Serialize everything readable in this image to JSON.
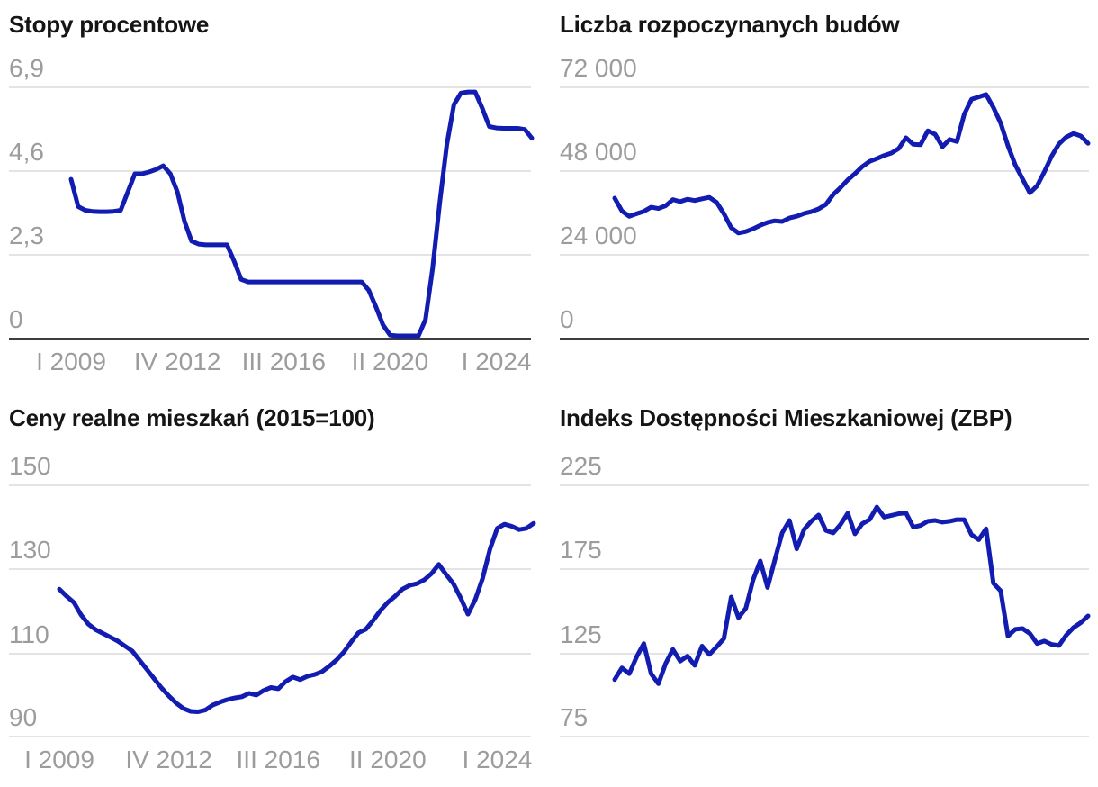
{
  "styles": {
    "background": "#ffffff",
    "line_color": "#121cb0",
    "grid_color": "#e4e4e4",
    "axis_color": "#3d3d3d",
    "tick_label_color": "#9c9c9c",
    "title_color": "#151515"
  },
  "chart_data": [
    {
      "id": "stopy-procentowe",
      "type": "line",
      "title": "Stopy procentowe",
      "ylim": [
        0,
        6.9
      ],
      "y_tick_labels": [
        "6,9",
        "4,6",
        "2,3",
        "0"
      ],
      "y_tick_values": [
        6.9,
        4.6,
        2.3,
        0
      ],
      "x_tick_labels": [
        "I 2009",
        "IV 2012",
        "III 2016",
        "II 2020",
        "I 2024"
      ],
      "grid": true,
      "legend": "none",
      "line_color": "#121cb0",
      "values": [
        4.35,
        3.6,
        3.5,
        3.47,
        3.46,
        3.46,
        3.47,
        3.5,
        4.0,
        4.5,
        4.5,
        4.55,
        4.62,
        4.72,
        4.5,
        4.0,
        3.2,
        2.65,
        2.57,
        2.55,
        2.55,
        2.55,
        2.55,
        2.1,
        1.6,
        1.53,
        1.53,
        1.53,
        1.53,
        1.53,
        1.53,
        1.53,
        1.53,
        1.53,
        1.53,
        1.53,
        1.53,
        1.53,
        1.53,
        1.53,
        1.53,
        1.53,
        1.3,
        0.85,
        0.35,
        0.07,
        0.05,
        0.05,
        0.05,
        0.05,
        0.5,
        1.9,
        3.7,
        5.3,
        6.4,
        6.72,
        6.75,
        6.75,
        6.3,
        5.8,
        5.76,
        5.75,
        5.75,
        5.75,
        5.72,
        5.48
      ]
    },
    {
      "id": "liczba-rozpoczynanych-budow",
      "type": "line",
      "title": "Liczba rozpoczynanych budów",
      "ylim": [
        0,
        72000
      ],
      "y_tick_labels": [
        "72 000",
        "48 000",
        "24 000",
        "0"
      ],
      "y_tick_values": [
        72000,
        48000,
        24000,
        0
      ],
      "x_tick_labels": [],
      "grid": true,
      "legend": "none",
      "line_color": "#121cb0",
      "values": [
        40000,
        36300,
        34800,
        35500,
        36200,
        37400,
        37000,
        37800,
        39600,
        39000,
        39700,
        39300,
        39800,
        40200,
        38800,
        35500,
        31500,
        30000,
        30400,
        31200,
        32200,
        33000,
        33500,
        33300,
        34300,
        34800,
        35600,
        36100,
        36900,
        38200,
        41000,
        43000,
        45200,
        47000,
        49000,
        50500,
        51300,
        52200,
        52900,
        54200,
        57300,
        55400,
        55300,
        59300,
        58300,
        54700,
        56800,
        56200,
        64000,
        68300,
        69000,
        69700,
        66000,
        61500,
        55000,
        49500,
        45500,
        41500,
        43500,
        47500,
        52000,
        55500,
        57500,
        58500,
        57800,
        55700
      ]
    },
    {
      "id": "ceny-realne-mieszkan",
      "type": "line",
      "title": "Ceny realne mieszkań (2015=100)",
      "ylim": [
        90,
        150
      ],
      "y_tick_labels": [
        "150",
        "130",
        "110",
        "90"
      ],
      "y_tick_values": [
        150,
        130,
        110,
        90
      ],
      "x_tick_labels": [
        "I 2009",
        "IV 2012",
        "III 2016",
        "II 2020",
        "I 2024"
      ],
      "grid": true,
      "legend": "none",
      "line_color": "#121cb0",
      "values": [
        125.0,
        123.3,
        121.8,
        118.8,
        116.6,
        115.3,
        114.4,
        113.5,
        112.6,
        111.4,
        110.2,
        108.0,
        105.8,
        103.6,
        101.4,
        99.5,
        97.8,
        96.5,
        95.8,
        95.7,
        96.1,
        97.3,
        98.0,
        98.6,
        99.0,
        99.3,
        100.1,
        99.7,
        100.8,
        101.5,
        101.2,
        102.9,
        104.0,
        103.4,
        104.2,
        104.6,
        105.3,
        106.6,
        108.1,
        110.0,
        112.4,
        114.6,
        115.4,
        117.5,
        119.9,
        121.8,
        123.3,
        125.0,
        125.9,
        126.3,
        127.2,
        128.7,
        130.9,
        128.5,
        126.3,
        122.9,
        119.0,
        122.5,
        127.5,
        134.5,
        139.5,
        140.5,
        140.0,
        139.2,
        139.5,
        140.7
      ]
    },
    {
      "id": "indeks-dostepnosci-mieszkaniowej",
      "type": "line",
      "title": "Indeks Dostępności Mieszkaniowej (ZBP)",
      "ylim": [
        75,
        225
      ],
      "y_tick_labels": [
        "225",
        "175",
        "125",
        "75"
      ],
      "y_tick_values": [
        225,
        175,
        125,
        75
      ],
      "x_tick_labels": [],
      "grid": true,
      "legend": "none",
      "line_color": "#121cb0",
      "values": [
        108.5,
        115.5,
        112.0,
        122.0,
        130.0,
        112.0,
        106.0,
        118.0,
        126.5,
        119.5,
        122.5,
        117.0,
        128.5,
        123.5,
        128.0,
        133.0,
        157.8,
        145.5,
        151.0,
        168.0,
        179.3,
        163.5,
        180.0,
        196.0,
        203.5,
        186.5,
        198.0,
        203.0,
        206.7,
        197.5,
        196.0,
        201.0,
        207.8,
        195.5,
        201.5,
        204.0,
        211.5,
        205.5,
        206.5,
        207.5,
        208.0,
        199.5,
        200.5,
        203.0,
        203.5,
        202.5,
        203.0,
        204.0,
        204.0,
        195.0,
        192.0,
        198.5,
        166.0,
        161.5,
        134.5,
        138.5,
        139.0,
        136.0,
        130.0,
        131.5,
        129.5,
        128.8,
        135.0,
        139.5,
        142.5,
        146.5
      ]
    }
  ]
}
